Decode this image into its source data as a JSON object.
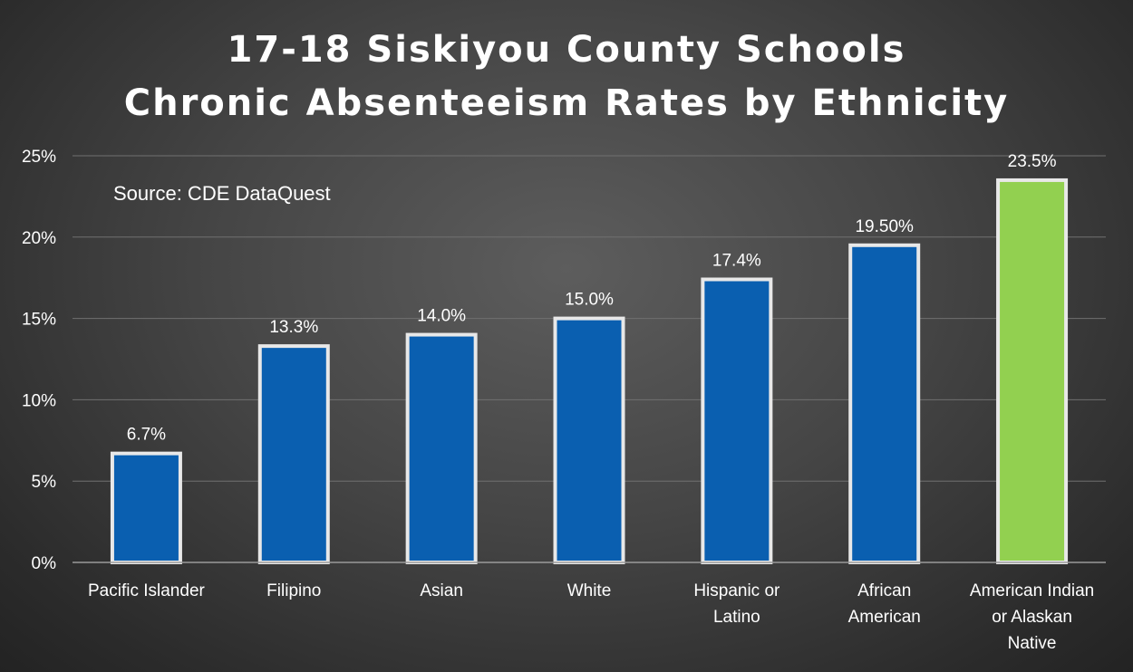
{
  "chart_data": {
    "type": "bar",
    "title_lines": [
      "17-18 Siskiyou County Schools",
      "Chronic Absenteeism Rates by Ethnicity"
    ],
    "annotation": "Source:  CDE DataQuest",
    "categories": [
      "Pacific Islander",
      "Filipino",
      "Asian",
      "White",
      "Hispanic or\nLatino",
      "African\nAmerican",
      "American Indian\nor Alaskan\nNative"
    ],
    "values": [
      6.7,
      13.3,
      14.0,
      15.0,
      17.4,
      19.5,
      23.5
    ],
    "data_labels": [
      "6.7%",
      "13.3%",
      "14.0%",
      "15.0%",
      "17.4%",
      "19.50%",
      "23.5%"
    ],
    "yticks": [
      "0%",
      "5%",
      "10%",
      "15%",
      "20%",
      "25%"
    ],
    "ytick_values": [
      0,
      5,
      10,
      15,
      20,
      25
    ],
    "ylim": [
      0,
      25
    ],
    "grid": true,
    "xlabel": "",
    "ylabel": "",
    "colors": {
      "bar": "#0a5fb0",
      "highlight_bar": "#92d050",
      "bar_border": "#e8e8e8",
      "text": "#ffffff",
      "grid": "#707070"
    },
    "highlight_index": 6
  }
}
